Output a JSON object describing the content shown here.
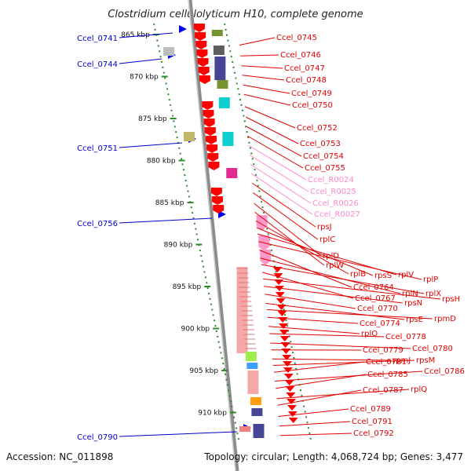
{
  "title": "Clostridium cellulolyticum H10, complete genome",
  "footer": {
    "accession": "Accession: NC_011898",
    "summary": "Topology: circular; Length: 4,068,724 bp; Genes: 3,477"
  },
  "colors": {
    "backbone": "#8c8c8c",
    "ticks": "#2e8b2e",
    "gene_red": "#ff0000",
    "rna_pink": "#ff99cc",
    "label_red": "#e00000",
    "label_blue": "#0000cc",
    "label_pink": "#ff88cc"
  },
  "ticks": [
    "865 kbp",
    "870 kbp",
    "875 kbp",
    "880 kbp",
    "885 kbp",
    "890 kbp",
    "895 kbp",
    "900 kbp",
    "905 kbp",
    "910 kbp"
  ],
  "left_labels": [
    "Ccel_0741",
    "Ccel_0744",
    "Ccel_0751",
    "Ccel_0756",
    "Ccel_0790"
  ],
  "right_labels": [
    {
      "text": "Ccel_0745",
      "color": "red"
    },
    {
      "text": "Ccel_0746",
      "color": "red"
    },
    {
      "text": "Ccel_0747",
      "color": "red"
    },
    {
      "text": "Ccel_0748",
      "color": "red"
    },
    {
      "text": "Ccel_0749",
      "color": "red"
    },
    {
      "text": "Ccel_0750",
      "color": "red"
    },
    {
      "text": "Ccel_0752",
      "color": "red"
    },
    {
      "text": "Ccel_0753",
      "color": "red"
    },
    {
      "text": "Ccel_0754",
      "color": "red"
    },
    {
      "text": "Ccel_0755",
      "color": "red"
    },
    {
      "text": "Ccel_R0024",
      "color": "pink"
    },
    {
      "text": "Ccel_R0025",
      "color": "pink"
    },
    {
      "text": "Ccel_R0026",
      "color": "pink"
    },
    {
      "text": "Ccel_R0027",
      "color": "pink"
    },
    {
      "text": "rpsJ",
      "color": "red"
    },
    {
      "text": "rplC",
      "color": "red"
    },
    {
      "text": "rplD",
      "color": "red"
    },
    {
      "text": "rplW",
      "color": "red"
    },
    {
      "text": "rplB",
      "color": "red"
    },
    {
      "text": "rpsS",
      "color": "red"
    },
    {
      "text": "rplV",
      "color": "red"
    },
    {
      "text": "rplP",
      "color": "red"
    },
    {
      "text": "Ccel_0764",
      "color": "red"
    },
    {
      "text": "rplN",
      "color": "red"
    },
    {
      "text": "rplX",
      "color": "red"
    },
    {
      "text": "Ccel_0767",
      "color": "red"
    },
    {
      "text": "rpsH",
      "color": "red"
    },
    {
      "text": "rpsN",
      "color": "red"
    },
    {
      "text": "Ccel_0770",
      "color": "red"
    },
    {
      "text": "rpsE",
      "color": "red"
    },
    {
      "text": "rpmD",
      "color": "red"
    },
    {
      "text": "Ccel_0774",
      "color": "red"
    },
    {
      "text": "rplO",
      "color": "red"
    },
    {
      "text": "Ccel_0778",
      "color": "red"
    },
    {
      "text": "Ccel_0780",
      "color": "red"
    },
    {
      "text": "Ccel_0779",
      "color": "red"
    },
    {
      "text": "rpmJ",
      "color": "red"
    },
    {
      "text": "rpsM",
      "color": "red"
    },
    {
      "text": "Ccel_0781",
      "color": "red"
    },
    {
      "text": "Ccel_0786",
      "color": "red"
    },
    {
      "text": "Ccel_0785",
      "color": "red"
    },
    {
      "text": "rplQ",
      "color": "red"
    },
    {
      "text": "Ccel_0787",
      "color": "red"
    },
    {
      "text": "Ccel_0789",
      "color": "red"
    },
    {
      "text": "Ccel_0791",
      "color": "red"
    },
    {
      "text": "Ccel_0792",
      "color": "red"
    }
  ]
}
